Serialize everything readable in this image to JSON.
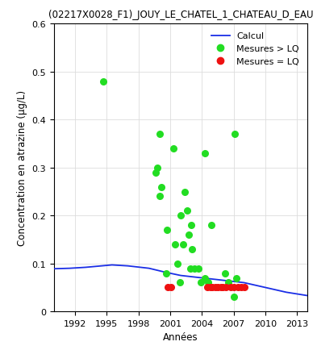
{
  "chart_data": {
    "type": "scatter",
    "title": "(02217X0028_F1)_JOUY_LE_CHATEL_1_CHATEAU_D_EAU",
    "x_label": "Années",
    "y_label": "Concentration en atrazine (µg/L)",
    "xlim": [
      1990,
      2014
    ],
    "xticks": [
      1992,
      1995,
      1998,
      2001,
      2004,
      2007,
      2010,
      2013
    ],
    "ylim": [
      0,
      0.6
    ],
    "yticks": [
      0,
      0.1,
      0.2,
      0.3,
      0.4,
      0.5,
      0.6
    ],
    "grid": true,
    "legend": "upper right",
    "series": [
      {
        "name": "Calcul",
        "type": "line",
        "color": "#1a2ee6",
        "line_style": "solid",
        "x": [
          1990,
          1991.5,
          1993,
          1994.5,
          1995.5,
          1997,
          1999,
          2000.5,
          2002,
          2004,
          2006,
          2008,
          2010,
          2012,
          2014
        ],
        "values": [
          0.089,
          0.09,
          0.092,
          0.095,
          0.097,
          0.095,
          0.09,
          0.082,
          0.075,
          0.07,
          0.065,
          0.06,
          0.05,
          0.04,
          0.033
        ]
      },
      {
        "name": "Mesures > LQ",
        "type": "scatter",
        "color": "#22dd22",
        "marker": "o",
        "x": [
          1994.7,
          1999.6,
          1999.8,
          2000.0,
          2000.2,
          2000.0,
          2000.7,
          2000.6,
          2001.3,
          2001.5,
          2001.7,
          2001.9,
          2002.0,
          2002.2,
          2002.4,
          2002.6,
          2002.8,
          2002.9,
          2003.0,
          2003.1,
          2003.3,
          2003.7,
          2003.9,
          2004.3,
          2004.3,
          2004.6,
          2004.9,
          2006.2,
          2006.5,
          2007.1,
          2007.0,
          2007.3
        ],
        "values": [
          0.48,
          0.29,
          0.3,
          0.37,
          0.26,
          0.24,
          0.17,
          0.08,
          0.34,
          0.14,
          0.1,
          0.06,
          0.2,
          0.14,
          0.25,
          0.21,
          0.16,
          0.09,
          0.18,
          0.13,
          0.09,
          0.09,
          0.06,
          0.33,
          0.07,
          0.06,
          0.18,
          0.08,
          0.06,
          0.37,
          0.03,
          0.07
        ]
      },
      {
        "name": "Mesures = LQ",
        "type": "scatter",
        "color": "#ee1111",
        "marker": "o",
        "x": [
          2000.8,
          2001.1,
          2004.5,
          2004.8,
          2005.0,
          2005.3,
          2005.5,
          2005.8,
          2006.0,
          2006.3,
          2006.7,
          2007.0,
          2007.4,
          2007.7,
          2008.0
        ],
        "values": [
          0.05,
          0.05,
          0.05,
          0.05,
          0.05,
          0.05,
          0.05,
          0.05,
          0.05,
          0.05,
          0.05,
          0.05,
          0.05,
          0.05,
          0.05
        ]
      }
    ]
  }
}
